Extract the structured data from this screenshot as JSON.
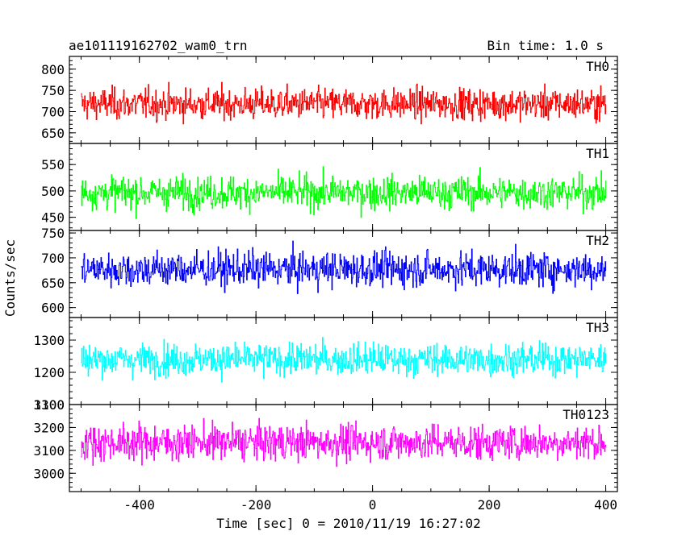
{
  "chart_data": {
    "type": "line",
    "title_left": "ae101119162702_wam0_trn",
    "title_right": "Bin time: 1.0 s",
    "xlabel": "Time [sec] 0 = 2010/11/19 16:27:02",
    "ylabel": "Counts/sec",
    "xlim": [
      -520,
      420
    ],
    "xticks": [
      -400,
      -200,
      0,
      200,
      400
    ],
    "x_range": [
      -500,
      400
    ],
    "x_step": 1.0,
    "panels": [
      {
        "name": "TH0",
        "color": "#ff0000",
        "ylim": [
          625,
          830
        ],
        "yticks": [
          650,
          700,
          750,
          800
        ],
        "mean": 718,
        "spread": 26,
        "min": 625,
        "max": 830
      },
      {
        "name": "TH1",
        "color": "#00ff00",
        "ylim": [
          425,
          590
        ],
        "yticks": [
          450,
          500,
          550
        ],
        "mean": 497,
        "spread": 22,
        "min": 425,
        "max": 590
      },
      {
        "name": "TH2",
        "color": "#0000ff",
        "ylim": [
          580,
          755
        ],
        "yticks": [
          600,
          650,
          700,
          750
        ],
        "mean": 677,
        "spread": 25,
        "min": 580,
        "max": 755
      },
      {
        "name": "TH3",
        "color": "#00ffff",
        "ylim": [
          1100,
          1370
        ],
        "yticks": [
          1100,
          1200,
          1300
        ],
        "mean": 1240,
        "spread": 35,
        "min": 1140,
        "max": 1370
      },
      {
        "name": "TH0123",
        "color": "#ff00ff",
        "ylim": [
          2920,
          3300
        ],
        "yticks": [
          3000,
          3100,
          3200,
          3300
        ],
        "mean": 3135,
        "spread": 55,
        "min": 2920,
        "max": 3300
      }
    ]
  }
}
